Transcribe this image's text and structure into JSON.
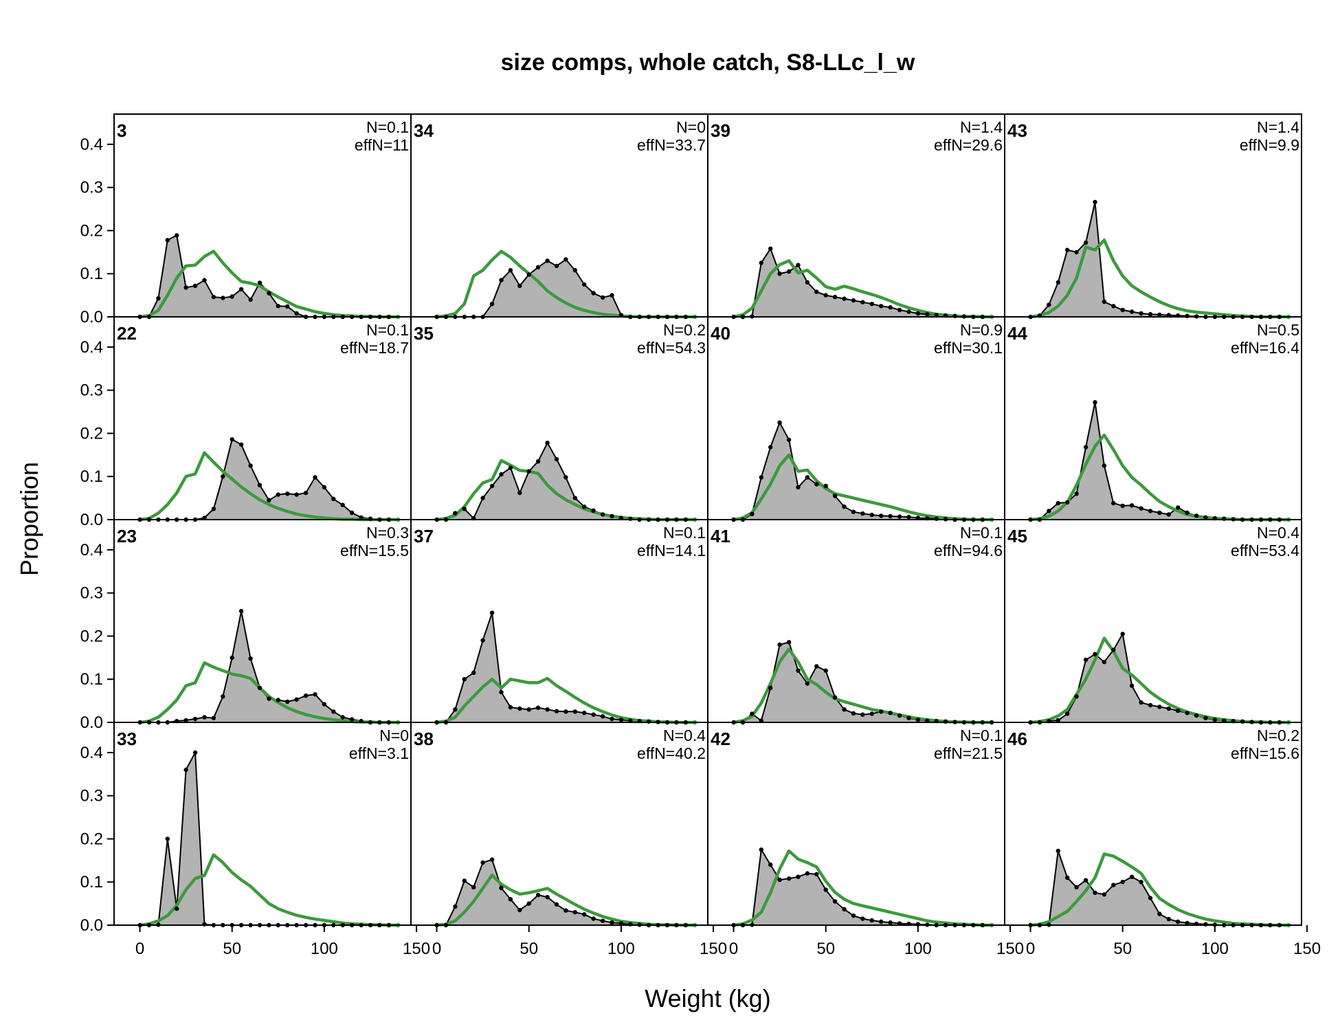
{
  "chart_data": {
    "type": "area",
    "title": "size comps, whole catch, S8-LLc_l_w",
    "xlabel": "Weight (kg)",
    "ylabel": "Proportion",
    "xlim": [
      -14,
      147
    ],
    "ylim": [
      0,
      0.47
    ],
    "x_ticks": [
      0,
      50,
      100,
      150
    ],
    "y_ticks": [
      0.0,
      0.1,
      0.2,
      0.3,
      0.4
    ],
    "x_tick_labels": [
      "0",
      "50",
      "100",
      "150"
    ],
    "y_tick_labels": [
      "0.0",
      "0.1",
      "0.2",
      "0.3",
      "0.4"
    ],
    "layout": {
      "rows": 4,
      "cols": 4,
      "order": "column-major"
    },
    "series_styles": {
      "observed": {
        "fill": "#b3b3b3",
        "line": "#000000",
        "point": "#000000"
      },
      "expected": {
        "line": "#3c9a3c"
      }
    },
    "grid": false,
    "legend": "none",
    "x": [
      0,
      5,
      10,
      15,
      20,
      25,
      30,
      35,
      40,
      45,
      50,
      55,
      60,
      65,
      70,
      75,
      80,
      85,
      90,
      95,
      100,
      105,
      110,
      115,
      120,
      125,
      130,
      135,
      140
    ],
    "panels": [
      {
        "label": "3",
        "N": "N=0.1",
        "effN": "effN=11",
        "observed": [
          0,
          0,
          0.043,
          0.178,
          0.189,
          0.068,
          0.072,
          0.085,
          0.046,
          0.044,
          0.047,
          0.064,
          0.04,
          0.079,
          0.055,
          0.025,
          0.024,
          0.008,
          0,
          0,
          0,
          0,
          0,
          0,
          0,
          0,
          0,
          0,
          0
        ],
        "expected": [
          0,
          0.003,
          0.015,
          0.05,
          0.09,
          0.118,
          0.12,
          0.14,
          0.152,
          0.125,
          0.102,
          0.082,
          0.078,
          0.072,
          0.058,
          0.046,
          0.035,
          0.024,
          0.018,
          0.012,
          0.008,
          0.005,
          0.003,
          0.002,
          0.001,
          0.001,
          0,
          0,
          0
        ]
      },
      {
        "label": "22",
        "N": "N=0.1",
        "effN": "effN=18.7",
        "observed": [
          0,
          0,
          0,
          0,
          0,
          0,
          0,
          0.004,
          0.025,
          0.1,
          0.186,
          0.174,
          0.125,
          0.08,
          0.045,
          0.058,
          0.06,
          0.058,
          0.062,
          0.098,
          0.075,
          0.048,
          0.034,
          0.016,
          0.005,
          0.002,
          0,
          0,
          0
        ],
        "expected": [
          0,
          0.003,
          0.015,
          0.035,
          0.062,
          0.1,
          0.106,
          0.155,
          0.133,
          0.112,
          0.094,
          0.076,
          0.06,
          0.046,
          0.035,
          0.026,
          0.019,
          0.013,
          0.009,
          0.006,
          0.004,
          0.002,
          0.001,
          0.001,
          0,
          0,
          0,
          0,
          0
        ]
      },
      {
        "label": "23",
        "N": "N=0.3",
        "effN": "effN=15.5",
        "observed": [
          0,
          0,
          0,
          0,
          0.003,
          0.005,
          0.008,
          0.012,
          0.01,
          0.06,
          0.15,
          0.258,
          0.148,
          0.08,
          0.055,
          0.052,
          0.048,
          0.053,
          0.062,
          0.065,
          0.042,
          0.025,
          0.012,
          0.007,
          0.003,
          0,
          0,
          0,
          0
        ],
        "expected": [
          0,
          0.003,
          0.012,
          0.03,
          0.052,
          0.085,
          0.092,
          0.138,
          0.128,
          0.12,
          0.112,
          0.108,
          0.102,
          0.08,
          0.06,
          0.046,
          0.034,
          0.025,
          0.018,
          0.013,
          0.009,
          0.006,
          0.004,
          0.002,
          0.001,
          0.001,
          0,
          0,
          0
        ]
      },
      {
        "label": "33",
        "N": "N=0",
        "effN": "effN=3.1",
        "observed": [
          0,
          0,
          0.001,
          0.2,
          0.038,
          0.36,
          0.4,
          0.002,
          0,
          0,
          0,
          0,
          0,
          0,
          0,
          0,
          0,
          0,
          0,
          0,
          0,
          0,
          0,
          0,
          0,
          0,
          0,
          0,
          0
        ],
        "expected": [
          0,
          0.003,
          0.01,
          0.022,
          0.046,
          0.082,
          0.108,
          0.115,
          0.163,
          0.145,
          0.122,
          0.105,
          0.09,
          0.07,
          0.05,
          0.038,
          0.03,
          0.023,
          0.018,
          0.014,
          0.011,
          0.008,
          0.005,
          0.003,
          0.002,
          0.001,
          0.001,
          0,
          0
        ]
      },
      {
        "label": "34",
        "N": "N=0",
        "effN": "effN=33.7",
        "observed": [
          0,
          0,
          0,
          0,
          0,
          0,
          0.03,
          0.085,
          0.108,
          0.072,
          0.098,
          0.115,
          0.13,
          0.118,
          0.133,
          0.108,
          0.075,
          0.055,
          0.045,
          0.05,
          0.004,
          0,
          0,
          0,
          0,
          0,
          0,
          0,
          0
        ],
        "expected": [
          0,
          0.002,
          0.008,
          0.03,
          0.095,
          0.108,
          0.132,
          0.152,
          0.138,
          0.118,
          0.1,
          0.082,
          0.06,
          0.045,
          0.032,
          0.022,
          0.015,
          0.01,
          0.006,
          0.004,
          0.002,
          0.001,
          0,
          0,
          0,
          0,
          0,
          0,
          0
        ]
      },
      {
        "label": "35",
        "N": "N=0.2",
        "effN": "effN=54.3",
        "observed": [
          0,
          0,
          0.015,
          0.025,
          0.003,
          0.05,
          0.078,
          0.105,
          0.12,
          0.062,
          0.112,
          0.135,
          0.178,
          0.14,
          0.098,
          0.05,
          0.03,
          0.021,
          0.012,
          0.008,
          0.004,
          0.002,
          0,
          0,
          0,
          0,
          0,
          0,
          0
        ],
        "expected": [
          0,
          0.003,
          0.01,
          0.03,
          0.06,
          0.085,
          0.093,
          0.137,
          0.126,
          0.114,
          0.112,
          0.107,
          0.08,
          0.06,
          0.046,
          0.035,
          0.025,
          0.018,
          0.012,
          0.008,
          0.005,
          0.003,
          0.002,
          0.001,
          0,
          0,
          0,
          0,
          0
        ]
      },
      {
        "label": "37",
        "N": "N=0.1",
        "effN": "effN=14.1",
        "observed": [
          0,
          0,
          0.03,
          0.1,
          0.115,
          0.19,
          0.254,
          0.07,
          0.035,
          0.032,
          0.03,
          0.034,
          0.03,
          0.026,
          0.025,
          0.025,
          0.022,
          0.018,
          0.014,
          0.008,
          0.006,
          0.004,
          0.003,
          0.002,
          0.001,
          0,
          0,
          0,
          0
        ],
        "expected": [
          0,
          0.003,
          0.012,
          0.038,
          0.06,
          0.082,
          0.1,
          0.08,
          0.1,
          0.096,
          0.092,
          0.092,
          0.102,
          0.085,
          0.072,
          0.058,
          0.045,
          0.034,
          0.025,
          0.017,
          0.011,
          0.007,
          0.004,
          0.003,
          0.001,
          0.001,
          0,
          0,
          0
        ]
      },
      {
        "label": "38",
        "N": "N=0.4",
        "effN": "effN=40.2",
        "observed": [
          0,
          0,
          0.043,
          0.103,
          0.088,
          0.145,
          0.152,
          0.086,
          0.06,
          0.035,
          0.05,
          0.07,
          0.065,
          0.048,
          0.034,
          0.03,
          0.025,
          0.015,
          0.01,
          0.006,
          0.004,
          0.002,
          0.001,
          0,
          0,
          0,
          0,
          0,
          0
        ],
        "expected": [
          0,
          0.002,
          0.01,
          0.03,
          0.055,
          0.085,
          0.116,
          0.095,
          0.082,
          0.072,
          0.075,
          0.08,
          0.085,
          0.072,
          0.06,
          0.048,
          0.037,
          0.028,
          0.02,
          0.014,
          0.009,
          0.006,
          0.004,
          0.002,
          0.001,
          0.001,
          0,
          0,
          0
        ]
      },
      {
        "label": "39",
        "N": "N=1.4",
        "effN": "effN=29.6",
        "observed": [
          0,
          0,
          0.001,
          0.125,
          0.158,
          0.1,
          0.105,
          0.12,
          0.08,
          0.058,
          0.05,
          0.046,
          0.042,
          0.038,
          0.034,
          0.03,
          0.025,
          0.022,
          0.016,
          0.012,
          0.008,
          0.006,
          0.004,
          0.003,
          0.002,
          0.001,
          0,
          0,
          0
        ],
        "expected": [
          0,
          0.005,
          0.02,
          0.06,
          0.1,
          0.121,
          0.13,
          0.102,
          0.108,
          0.09,
          0.07,
          0.064,
          0.071,
          0.065,
          0.058,
          0.052,
          0.045,
          0.037,
          0.028,
          0.021,
          0.015,
          0.01,
          0.006,
          0.004,
          0.002,
          0.001,
          0.001,
          0,
          0
        ]
      },
      {
        "label": "40",
        "N": "N=0.9",
        "effN": "effN=30.1",
        "observed": [
          0,
          0,
          0.013,
          0.098,
          0.168,
          0.225,
          0.185,
          0.075,
          0.098,
          0.082,
          0.078,
          0.055,
          0.03,
          0.018,
          0.014,
          0.011,
          0.009,
          0.008,
          0.007,
          0.006,
          0.004,
          0.003,
          0.002,
          0.001,
          0,
          0,
          0,
          0,
          0
        ],
        "expected": [
          0,
          0.004,
          0.016,
          0.048,
          0.082,
          0.125,
          0.15,
          0.112,
          0.115,
          0.09,
          0.072,
          0.06,
          0.055,
          0.05,
          0.045,
          0.04,
          0.035,
          0.03,
          0.024,
          0.018,
          0.013,
          0.009,
          0.006,
          0.004,
          0.002,
          0.001,
          0,
          0,
          0
        ]
      },
      {
        "label": "41",
        "N": "N=0.1",
        "effN": "effN=94.6",
        "observed": [
          0,
          0,
          0.02,
          0.004,
          0.08,
          0.18,
          0.186,
          0.12,
          0.09,
          0.13,
          0.12,
          0.058,
          0.03,
          0.021,
          0.018,
          0.02,
          0.025,
          0.022,
          0.016,
          0.01,
          0.006,
          0.004,
          0.003,
          0.002,
          0.001,
          0,
          0,
          0,
          0
        ],
        "expected": [
          0,
          0.004,
          0.014,
          0.045,
          0.09,
          0.14,
          0.17,
          0.14,
          0.1,
          0.088,
          0.07,
          0.055,
          0.048,
          0.042,
          0.036,
          0.03,
          0.026,
          0.022,
          0.017,
          0.013,
          0.009,
          0.006,
          0.004,
          0.002,
          0.001,
          0.001,
          0,
          0,
          0
        ],
        "last_point_green": false
      },
      {
        "label": "42",
        "N": "N=0.1",
        "effN": "effN=21.5",
        "observed": [
          0,
          0,
          0.001,
          0.175,
          0.14,
          0.105,
          0.108,
          0.112,
          0.12,
          0.118,
          0.082,
          0.055,
          0.037,
          0.022,
          0.015,
          0.011,
          0.008,
          0.006,
          0.004,
          0.003,
          0.002,
          0.001,
          0,
          0,
          0,
          0,
          0,
          0,
          0
        ],
        "expected": [
          0,
          0.003,
          0.012,
          0.03,
          0.075,
          0.13,
          0.172,
          0.153,
          0.145,
          0.135,
          0.102,
          0.076,
          0.06,
          0.05,
          0.045,
          0.04,
          0.035,
          0.03,
          0.025,
          0.02,
          0.015,
          0.01,
          0.007,
          0.005,
          0.003,
          0.002,
          0.001,
          0,
          0
        ]
      },
      {
        "label": "43",
        "N": "N=1.4",
        "effN": "effN=9.9",
        "observed": [
          0,
          0.003,
          0.028,
          0.08,
          0.155,
          0.15,
          0.172,
          0.266,
          0.035,
          0.025,
          0.016,
          0.012,
          0.008,
          0.006,
          0.005,
          0.004,
          0.003,
          0.002,
          0.001,
          0,
          0,
          0,
          0,
          0,
          0,
          0,
          0,
          0,
          0
        ],
        "expected": [
          0,
          0.003,
          0.01,
          0.025,
          0.05,
          0.09,
          0.162,
          0.155,
          0.178,
          0.13,
          0.095,
          0.072,
          0.058,
          0.046,
          0.035,
          0.026,
          0.019,
          0.014,
          0.011,
          0.009,
          0.007,
          0.005,
          0.003,
          0.002,
          0.001,
          0,
          0,
          0,
          0
        ]
      },
      {
        "label": "44",
        "N": "N=0.5",
        "effN": "effN=16.4",
        "observed": [
          0,
          0,
          0.02,
          0.038,
          0.04,
          0.06,
          0.168,
          0.272,
          0.125,
          0.038,
          0.032,
          0.033,
          0.026,
          0.02,
          0.016,
          0.012,
          0.028,
          0.016,
          0.009,
          0.005,
          0.003,
          0.002,
          0.001,
          0,
          0,
          0,
          0,
          0,
          0
        ],
        "expected": [
          0,
          0.002,
          0.008,
          0.02,
          0.04,
          0.08,
          0.128,
          0.17,
          0.196,
          0.162,
          0.125,
          0.098,
          0.08,
          0.06,
          0.042,
          0.03,
          0.02,
          0.012,
          0.008,
          0.005,
          0.003,
          0.002,
          0.001,
          0,
          0,
          0,
          0,
          0,
          0
        ]
      },
      {
        "label": "45",
        "N": "N=0.4",
        "effN": "effN=53.4",
        "observed": [
          0,
          0,
          0.003,
          0.005,
          0.02,
          0.06,
          0.145,
          0.158,
          0.14,
          0.168,
          0.205,
          0.085,
          0.046,
          0.04,
          0.036,
          0.032,
          0.027,
          0.022,
          0.016,
          0.01,
          0.006,
          0.004,
          0.003,
          0.002,
          0.001,
          0,
          0,
          0,
          0
        ],
        "expected": [
          0,
          0.002,
          0.006,
          0.015,
          0.03,
          0.065,
          0.1,
          0.145,
          0.195,
          0.165,
          0.125,
          0.11,
          0.09,
          0.07,
          0.055,
          0.042,
          0.032,
          0.024,
          0.018,
          0.013,
          0.009,
          0.006,
          0.004,
          0.002,
          0.001,
          0.001,
          0,
          0,
          0
        ]
      },
      {
        "label": "46",
        "N": "N=0.2",
        "effN": "effN=15.6",
        "observed": [
          0,
          0,
          0.001,
          0.172,
          0.11,
          0.088,
          0.104,
          0.075,
          0.071,
          0.093,
          0.1,
          0.112,
          0.1,
          0.063,
          0.026,
          0.014,
          0.008,
          0.005,
          0.003,
          0.002,
          0.001,
          0,
          0,
          0,
          0,
          0,
          0,
          0,
          0
        ],
        "expected": [
          0,
          0.002,
          0.008,
          0.02,
          0.032,
          0.055,
          0.08,
          0.11,
          0.165,
          0.16,
          0.148,
          0.135,
          0.12,
          0.088,
          0.062,
          0.048,
          0.036,
          0.027,
          0.02,
          0.014,
          0.01,
          0.007,
          0.004,
          0.003,
          0.002,
          0.001,
          0,
          0,
          0
        ]
      }
    ]
  }
}
